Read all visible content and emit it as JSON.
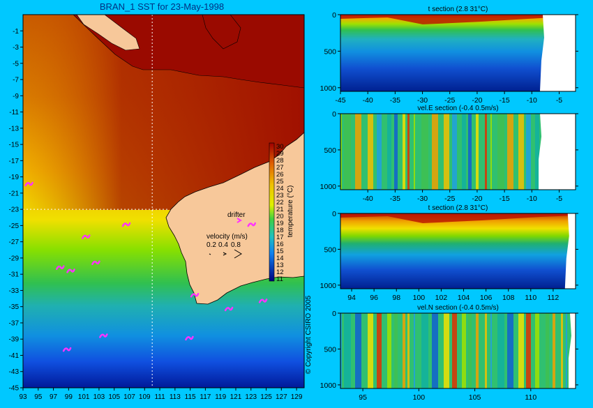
{
  "page": {
    "background": "#00c8ff",
    "copyright": "© Copyright CSIRO 2005"
  },
  "colorbar": {
    "ticks": [
      "30",
      "29",
      "28",
      "27",
      "26",
      "25",
      "24",
      "23",
      "22",
      "21",
      "20",
      "19",
      "18",
      "17",
      "16",
      "15",
      "14",
      "13",
      "12",
      "11"
    ],
    "label": "temperature (°C)"
  },
  "legend": {
    "drifter_label": "drifter",
    "velocity_label": "velocity (m/s)",
    "velocity_values": [
      "0.2",
      "0.4",
      "0.8"
    ],
    "drifter_color": "#ff33ff"
  },
  "chart_data": [
    {
      "type": "heatmap",
      "title": "BRAN_1 SST for 23-May-1998",
      "x_ticks": [
        "93",
        "95",
        "97",
        "99",
        "101",
        "103",
        "105",
        "107",
        "109",
        "111",
        "113",
        "115",
        "117",
        "119",
        "121",
        "123",
        "125",
        "127",
        "129"
      ],
      "y_ticks": [
        "-1",
        "-3",
        "-5",
        "-7",
        "-9",
        "-11",
        "-13",
        "-15",
        "-17",
        "-19",
        "-21",
        "-23",
        "-25",
        "-27",
        "-29",
        "-31",
        "-33",
        "-35",
        "-37",
        "-39",
        "-41",
        "-43",
        "-45"
      ],
      "xlim": [
        93,
        130
      ],
      "ylim": [
        -45,
        1
      ],
      "section_lines": {
        "longitude": 110,
        "latitude": -23
      },
      "drifters": [
        [
          93.7,
          -19.8
        ],
        [
          101.2,
          -26.3
        ],
        [
          102.5,
          -29.5
        ],
        [
          99.2,
          -30.5
        ],
        [
          97.8,
          -30.1
        ],
        [
          106.5,
          -24.8
        ],
        [
          115.5,
          -33.5
        ],
        [
          114.8,
          -38.8
        ],
        [
          98.7,
          -40.2
        ],
        [
          103.5,
          -38.5
        ],
        [
          120.0,
          -35.2
        ],
        [
          124.5,
          -34.2
        ],
        [
          123.0,
          -24.8
        ]
      ]
    },
    {
      "type": "heatmap",
      "title": "t section (2.8      31°C)",
      "x_ticks": [
        "-45",
        "-40",
        "-35",
        "-30",
        "-25",
        "-20",
        "-15",
        "-10",
        "-5"
      ],
      "y_ticks": [
        "0",
        "500",
        "1000"
      ],
      "xlim": [
        -45,
        -2
      ],
      "ylim": [
        1050,
        0
      ]
    },
    {
      "type": "heatmap",
      "title": "vel.E section (-0.4      0.5m/s)",
      "x_ticks": [
        "-40",
        "-35",
        "-30",
        "-25",
        "-20",
        "-15",
        "-10",
        "-5"
      ],
      "y_ticks": [
        "0",
        "500",
        "1000"
      ],
      "xlim": [
        -45,
        -2
      ],
      "ylim": [
        1050,
        0
      ]
    },
    {
      "type": "heatmap",
      "title": "t section (2.8      31°C)",
      "x_ticks": [
        "94",
        "96",
        "98",
        "100",
        "102",
        "104",
        "106",
        "108",
        "110",
        "112"
      ],
      "y_ticks": [
        "0",
        "500",
        "1000"
      ],
      "xlim": [
        93,
        114
      ],
      "ylim": [
        1050,
        0
      ]
    },
    {
      "type": "heatmap",
      "title": "vel.N section (-0.4      0.5m/s)",
      "x_ticks": [
        "95",
        "100",
        "105",
        "110"
      ],
      "y_ticks": [
        "0",
        "500",
        "1000"
      ],
      "xlim": [
        93,
        114
      ],
      "ylim": [
        1050,
        0
      ]
    }
  ]
}
